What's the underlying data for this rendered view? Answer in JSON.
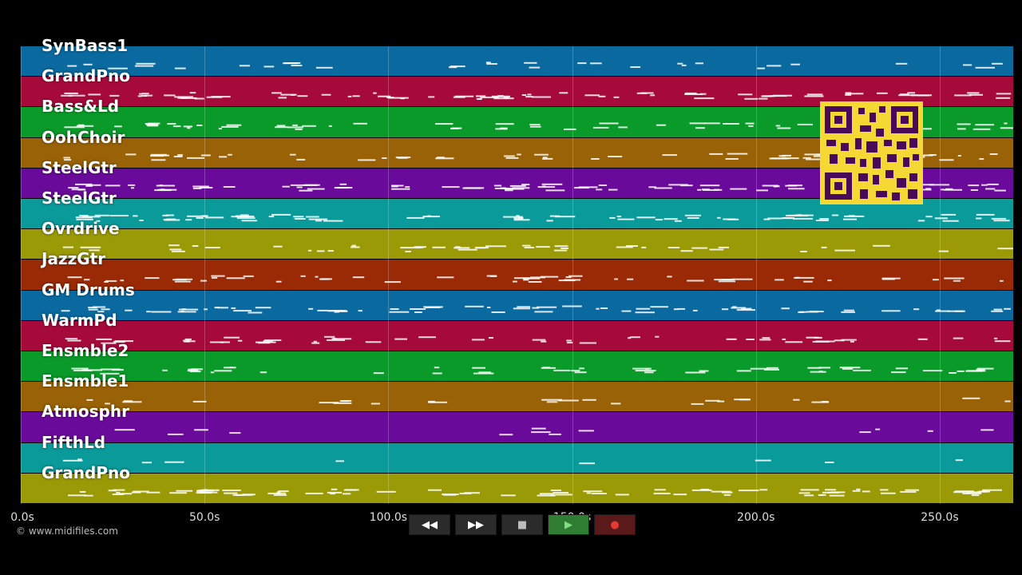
{
  "app": {
    "copyright": "© www.midifiles.com"
  },
  "tracks": [
    {
      "name": "SynBass1",
      "color": "#0a6aa0",
      "density": 0.35
    },
    {
      "name": "GrandPno",
      "color": "#a60a3a",
      "density": 0.9
    },
    {
      "name": "Bass&Ld",
      "color": "#0a9a2a",
      "density": 0.6
    },
    {
      "name": "OohChoir",
      "color": "#9a6206",
      "density": 0.6
    },
    {
      "name": "SteelGtr",
      "color": "#6a0a9a",
      "density": 1.0
    },
    {
      "name": "SteelGtr",
      "color": "#0a9a9a",
      "density": 0.9
    },
    {
      "name": "Ovrdrive",
      "color": "#9a9a06",
      "density": 0.5
    },
    {
      "name": "JazzGtr",
      "color": "#9a2a06",
      "density": 0.6
    },
    {
      "name": "GM Drums",
      "color": "#0a6aa0",
      "density": 0.8
    },
    {
      "name": "WarmPd",
      "color": "#a60a3a",
      "density": 0.6
    },
    {
      "name": "Ensmble2",
      "color": "#0a9a2a",
      "density": 0.6
    },
    {
      "name": "Ensmble1",
      "color": "#9a6206",
      "density": 0.3
    },
    {
      "name": "Atmosphr",
      "color": "#6a0a9a",
      "density": 0.15
    },
    {
      "name": "FifthLd",
      "color": "#0a9a9a",
      "density": 0.1
    },
    {
      "name": "GrandPno",
      "color": "#9a9a06",
      "density": 1.0
    }
  ],
  "axis": {
    "ticks": [
      "0.0s",
      "50.0s",
      "100.0s",
      "150.0s",
      "200.0s",
      "250.0s"
    ],
    "tick_values": [
      0,
      50,
      100,
      150,
      200,
      250
    ],
    "max": 270
  },
  "controls": [
    {
      "name": "rewind-button",
      "icon": "rewind-icon",
      "glyph": "◀◀"
    },
    {
      "name": "fast-forward-button",
      "icon": "fast-forward-icon",
      "glyph": "▶▶"
    },
    {
      "name": "stop-button",
      "icon": "stop-icon",
      "glyph": "■"
    },
    {
      "name": "play-button",
      "icon": "play-icon",
      "glyph": "▶"
    },
    {
      "name": "record-button",
      "icon": "record-icon",
      "glyph": "●"
    }
  ]
}
